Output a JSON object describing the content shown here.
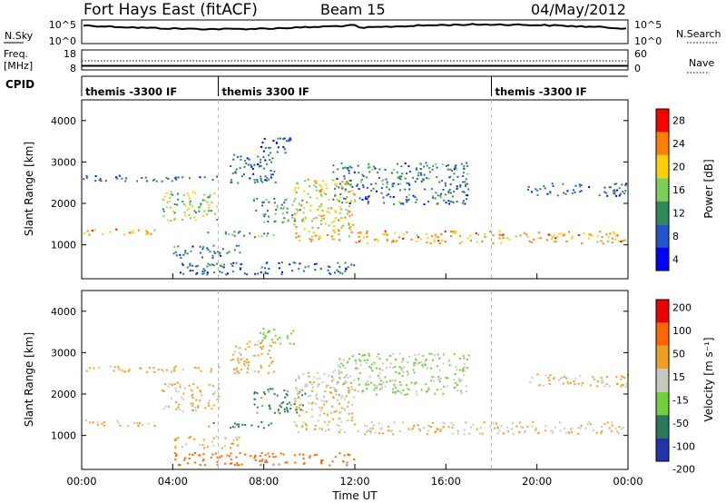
{
  "chart_data": {
    "type": "heatmap",
    "header": {
      "station": "Fort Hays East (fitACF)",
      "beam": "Beam 15",
      "date": "04/May/2012"
    },
    "x_axis": {
      "label": "Time UT",
      "ticks": [
        "00:00",
        "04:00",
        "08:00",
        "12:00",
        "16:00",
        "20:00",
        "00:00"
      ],
      "range_hours": [
        0,
        24
      ]
    },
    "noise_panel": {
      "left_label": "N.Sky",
      "left_ticks": [
        "10^5",
        "10^0"
      ],
      "right_label": "N.Search",
      "right_ticks": [
        "10^5",
        "10^0"
      ]
    },
    "freq_panel": {
      "left_label_1": "Freq.",
      "left_label_2": "[MHz]",
      "left_ticks": [
        "18",
        "8"
      ],
      "right_label": "Nave",
      "right_ticks": [
        "60",
        "0"
      ]
    },
    "cpid_panel": {
      "label": "CPID",
      "segments": [
        {
          "name": "themis -3300 IF",
          "start_hour": 0,
          "end_hour": 6
        },
        {
          "name": "themis 3300 IF",
          "start_hour": 6,
          "end_hour": 18
        },
        {
          "name": "themis -3300 IF",
          "start_hour": 18,
          "end_hour": 24
        }
      ]
    },
    "power_panel": {
      "ylabel": "Slant Range [km]",
      "yticks": [
        1000,
        2000,
        3000,
        4000
      ],
      "ylim": [
        180,
        4500
      ],
      "colorbar_label": "Power [dB]",
      "colorbar_ticks": [
        "28",
        "24",
        "20",
        "16",
        "12",
        "8",
        "4"
      ],
      "colors": [
        "#0000ff",
        "#2255cc",
        "#2e8b57",
        "#7fce5a",
        "#ffd000",
        "#ff8000",
        "#ff0000"
      ]
    },
    "velocity_panel": {
      "ylabel": "Slant Range [km]",
      "yticks": [
        1000,
        2000,
        3000,
        4000
      ],
      "ylim": [
        180,
        4500
      ],
      "colorbar_label": "Velocity [m s⁻¹]",
      "colorbar_ticks": [
        "200",
        "100",
        "50",
        "15",
        "-15",
        "-50",
        "-100",
        "-200"
      ],
      "colors": [
        "#2233aa",
        "#2a7a5a",
        "#70d040",
        "#c8c8c0",
        "#f0a020",
        "#ff6600",
        "#ee0000"
      ]
    },
    "echo_regions": [
      {
        "name": "upper-arc-early",
        "t0": 0.0,
        "t1": 6.0,
        "r0": 2550,
        "r1": 2700,
        "p": 9,
        "v": -30
      },
      {
        "name": "main-band-early",
        "t0": 0.0,
        "t1": 3.5,
        "r0": 1250,
        "r1": 1400,
        "p": 22,
        "v": -12
      },
      {
        "name": "main-band-rise",
        "t0": 3.5,
        "t1": 6.0,
        "r0": 1600,
        "r1": 2300,
        "p": 16,
        "v": -20
      },
      {
        "name": "stream-near-peak",
        "t0": 6.5,
        "t1": 8.5,
        "r0": 2500,
        "r1": 3300,
        "p": 9,
        "v": -25
      },
      {
        "name": "peak-8ut",
        "t0": 7.8,
        "t1": 9.3,
        "r0": 3200,
        "r1": 3600,
        "p": 7,
        "v": 30
      },
      {
        "name": "ionospheric-patch",
        "t0": 7.5,
        "t1": 9.8,
        "r0": 1550,
        "r1": 2150,
        "p": 13,
        "v": 60
      },
      {
        "name": "descending-arc",
        "t0": 9.3,
        "t1": 12.0,
        "r0": 1100,
        "r1": 2600,
        "p": 20,
        "v": -10
      },
      {
        "name": "main-band-late",
        "t0": 12.0,
        "t1": 24.0,
        "r0": 1050,
        "r1": 1350,
        "p": 22,
        "v": -10
      },
      {
        "name": "upper-arc-late",
        "t0": 11.0,
        "t1": 17.0,
        "r0": 2000,
        "r1": 3000,
        "p": 10,
        "v": 20
      },
      {
        "name": "late-upper",
        "t0": 19.5,
        "t1": 24.0,
        "r0": 2200,
        "r1": 2500,
        "p": 9,
        "v": -20
      },
      {
        "name": "near-range-1",
        "t0": 4.0,
        "t1": 7.0,
        "r0": 700,
        "r1": 1000,
        "p": 10,
        "v": -15
      },
      {
        "name": "near-range-2",
        "t0": 4.0,
        "t1": 12.0,
        "r0": 300,
        "r1": 600,
        "p": 9,
        "v": -70
      },
      {
        "name": "mid-patch-6ut",
        "t0": 5.5,
        "t1": 8.5,
        "r0": 1200,
        "r1": 1350,
        "p": 14,
        "v": 65
      }
    ]
  }
}
